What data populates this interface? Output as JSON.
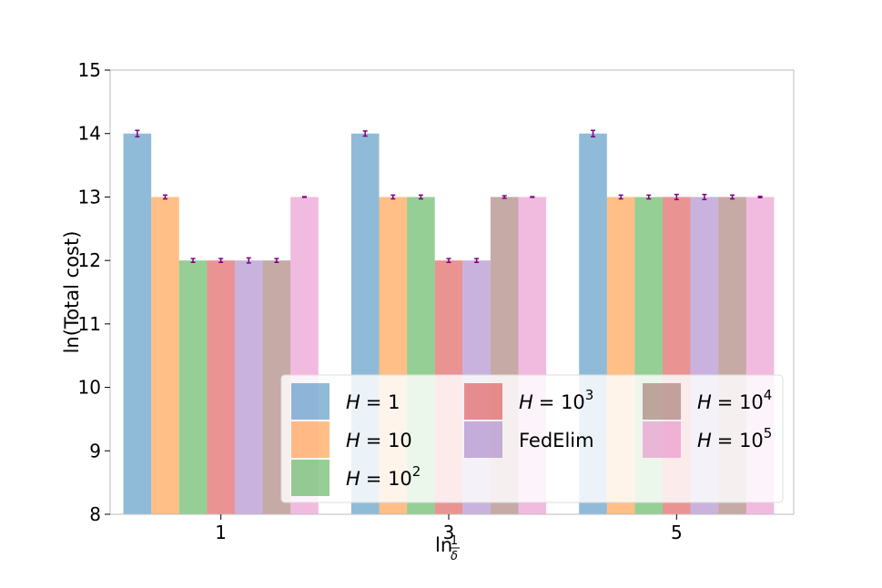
{
  "chart_data": {
    "type": "bar",
    "title": "",
    "xlabel": "ln(1/δ)",
    "ylabel": "ln(Total cost)",
    "ylim": [
      8,
      15
    ],
    "yticks": [
      "8",
      "9",
      "10",
      "11",
      "12",
      "13",
      "14",
      "15"
    ],
    "categories": [
      "1",
      "3",
      "5"
    ],
    "legend_position": "lower-right",
    "series": [
      {
        "name": "H = 1",
        "label_var": "H",
        "label_base": "= 1",
        "label_exp": "",
        "color": "#1f77b4",
        "values": [
          14,
          14,
          14
        ],
        "errors": [
          0.05,
          0.04,
          0.05
        ]
      },
      {
        "name": "H = 10",
        "label_var": "H",
        "label_base": "= 10",
        "label_exp": "",
        "color": "#ff7f0e",
        "values": [
          13,
          13,
          13
        ],
        "errors": [
          0.03,
          0.03,
          0.03
        ]
      },
      {
        "name": "H = 10^2",
        "label_var": "H",
        "label_base": "= 10",
        "label_exp": "2",
        "color": "#2ca02c",
        "values": [
          12,
          13,
          13
        ],
        "errors": [
          0.03,
          0.03,
          0.03
        ]
      },
      {
        "name": "H = 10^3",
        "label_var": "H",
        "label_base": "= 10",
        "label_exp": "3",
        "color": "#d62728",
        "values": [
          12,
          12,
          13
        ],
        "errors": [
          0.03,
          0.03,
          0.04
        ]
      },
      {
        "name": "FedElim",
        "label_var": "",
        "label_base": "FedElim",
        "label_exp": "",
        "color": "#9467bd",
        "values": [
          12,
          12,
          13
        ],
        "errors": [
          0.04,
          0.03,
          0.04
        ]
      },
      {
        "name": "H = 10^4",
        "label_var": "H",
        "label_base": "= 10",
        "label_exp": "4",
        "color": "#8c564b",
        "values": [
          12,
          13,
          13
        ],
        "errors": [
          0.03,
          0.02,
          0.03
        ]
      },
      {
        "name": "H = 10^5",
        "label_var": "H",
        "label_base": "= 10",
        "label_exp": "5",
        "color": "#e377c2",
        "values": [
          13,
          13,
          13
        ],
        "errors": [
          0.005,
          0.005,
          0.01
        ]
      }
    ],
    "bar_alpha": 0.5,
    "errorbar_color": "#800080"
  }
}
